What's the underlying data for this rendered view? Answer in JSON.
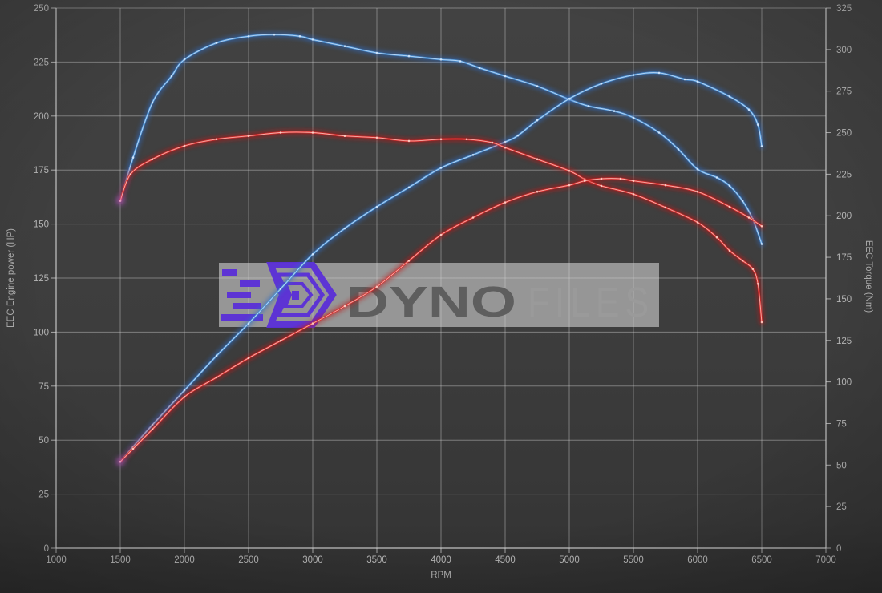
{
  "watermark": {
    "brand_bold": "DYNO",
    "brand_light": "FILES"
  },
  "colors": {
    "background": "#3c3c3c",
    "grid": "#cfcfcf",
    "axis_line": "#d9d9d9",
    "tick_text": "#b6b6b6",
    "axis_title_text": "#aeaeae",
    "watermark_bar": "#d2d2d2",
    "logo_purple": "#5b2fd8",
    "watermark_text_dark": "#5e5e5e",
    "watermark_text_light": "#9a9a9a",
    "start_glow": "#b65fd6"
  },
  "chart_data": {
    "type": "line",
    "xlabel": "RPM",
    "x_range": [
      1000,
      7000
    ],
    "x_ticks": [
      1000,
      1500,
      2000,
      2500,
      3000,
      3500,
      4000,
      4500,
      5000,
      5500,
      6000,
      6500,
      7000
    ],
    "axes": {
      "left": {
        "label": "EEC Engine power (HP)",
        "range": [
          0,
          250
        ],
        "ticks": [
          0,
          25,
          50,
          75,
          100,
          125,
          150,
          175,
          200,
          225,
          250
        ]
      },
      "right": {
        "label": "EEC Torque (Nm)",
        "range": [
          0,
          325
        ],
        "ticks": [
          0,
          25,
          50,
          75,
          100,
          125,
          150,
          175,
          200,
          225,
          250,
          275,
          300,
          325
        ]
      }
    },
    "grid": true,
    "legend": "none",
    "series": [
      {
        "name": "torque-blue",
        "axis": "right",
        "unit": "Nm",
        "color": "#4a8fd1",
        "glow": "#2e6cc4",
        "core": "#d6eaff",
        "points": [
          [
            1500,
            209
          ],
          [
            1600,
            235
          ],
          [
            1750,
            268
          ],
          [
            1900,
            284
          ],
          [
            2000,
            294
          ],
          [
            2250,
            304
          ],
          [
            2500,
            308
          ],
          [
            2700,
            309
          ],
          [
            2900,
            308
          ],
          [
            3000,
            306
          ],
          [
            3250,
            302
          ],
          [
            3500,
            298
          ],
          [
            3750,
            296
          ],
          [
            4000,
            294
          ],
          [
            4150,
            293
          ],
          [
            4300,
            289
          ],
          [
            4500,
            284
          ],
          [
            4750,
            278
          ],
          [
            5000,
            270
          ],
          [
            5150,
            266
          ],
          [
            5350,
            263
          ],
          [
            5500,
            259
          ],
          [
            5700,
            250
          ],
          [
            5850,
            240
          ],
          [
            6000,
            228
          ],
          [
            6150,
            223
          ],
          [
            6250,
            218
          ],
          [
            6350,
            209
          ],
          [
            6430,
            198
          ],
          [
            6500,
            183
          ]
        ]
      },
      {
        "name": "power-blue",
        "axis": "left",
        "unit": "HP",
        "color": "#4a8fd1",
        "glow": "#2e6cc4",
        "core": "#d6eaff",
        "points": [
          [
            1500,
            40
          ],
          [
            1600,
            47
          ],
          [
            1750,
            57
          ],
          [
            2000,
            73
          ],
          [
            2250,
            89
          ],
          [
            2500,
            104
          ],
          [
            2750,
            120
          ],
          [
            3000,
            136
          ],
          [
            3250,
            148
          ],
          [
            3500,
            158
          ],
          [
            3750,
            167
          ],
          [
            4000,
            176
          ],
          [
            4250,
            182
          ],
          [
            4500,
            188
          ],
          [
            4600,
            191
          ],
          [
            4750,
            198
          ],
          [
            5000,
            208
          ],
          [
            5250,
            215
          ],
          [
            5500,
            219
          ],
          [
            5700,
            220
          ],
          [
            5900,
            217
          ],
          [
            6000,
            216
          ],
          [
            6250,
            209
          ],
          [
            6400,
            203
          ],
          [
            6470,
            196
          ],
          [
            6500,
            186
          ]
        ]
      },
      {
        "name": "torque-red",
        "axis": "right",
        "unit": "Nm",
        "color": "#d42c2c",
        "glow": "#c01616",
        "core": "#ffd2c9",
        "points": [
          [
            1500,
            209
          ],
          [
            1580,
            225
          ],
          [
            1750,
            234
          ],
          [
            2000,
            242
          ],
          [
            2250,
            246
          ],
          [
            2500,
            248
          ],
          [
            2750,
            250
          ],
          [
            3000,
            250
          ],
          [
            3250,
            248
          ],
          [
            3500,
            247
          ],
          [
            3750,
            245
          ],
          [
            4000,
            246
          ],
          [
            4200,
            246
          ],
          [
            4400,
            244
          ],
          [
            4500,
            241
          ],
          [
            4750,
            234
          ],
          [
            5000,
            227
          ],
          [
            5120,
            222
          ],
          [
            5250,
            218
          ],
          [
            5500,
            213
          ],
          [
            5750,
            205
          ],
          [
            6000,
            196
          ],
          [
            6150,
            187
          ],
          [
            6250,
            179
          ],
          [
            6350,
            173
          ],
          [
            6430,
            168
          ],
          [
            6470,
            159
          ],
          [
            6500,
            136
          ]
        ]
      },
      {
        "name": "power-red",
        "axis": "left",
        "unit": "HP",
        "color": "#d42c2c",
        "glow": "#c01616",
        "core": "#ffd2c9",
        "points": [
          [
            1500,
            40
          ],
          [
            1600,
            46
          ],
          [
            1750,
            55
          ],
          [
            2000,
            70
          ],
          [
            2250,
            79
          ],
          [
            2500,
            88
          ],
          [
            2750,
            96
          ],
          [
            3000,
            104
          ],
          [
            3250,
            112
          ],
          [
            3500,
            121
          ],
          [
            3750,
            133
          ],
          [
            4000,
            145
          ],
          [
            4250,
            153
          ],
          [
            4500,
            160
          ],
          [
            4750,
            165
          ],
          [
            5000,
            168
          ],
          [
            5120,
            170
          ],
          [
            5250,
            171
          ],
          [
            5400,
            171
          ],
          [
            5500,
            170
          ],
          [
            5750,
            168
          ],
          [
            6000,
            165
          ],
          [
            6250,
            158
          ],
          [
            6400,
            153
          ],
          [
            6500,
            149
          ]
        ]
      }
    ]
  }
}
